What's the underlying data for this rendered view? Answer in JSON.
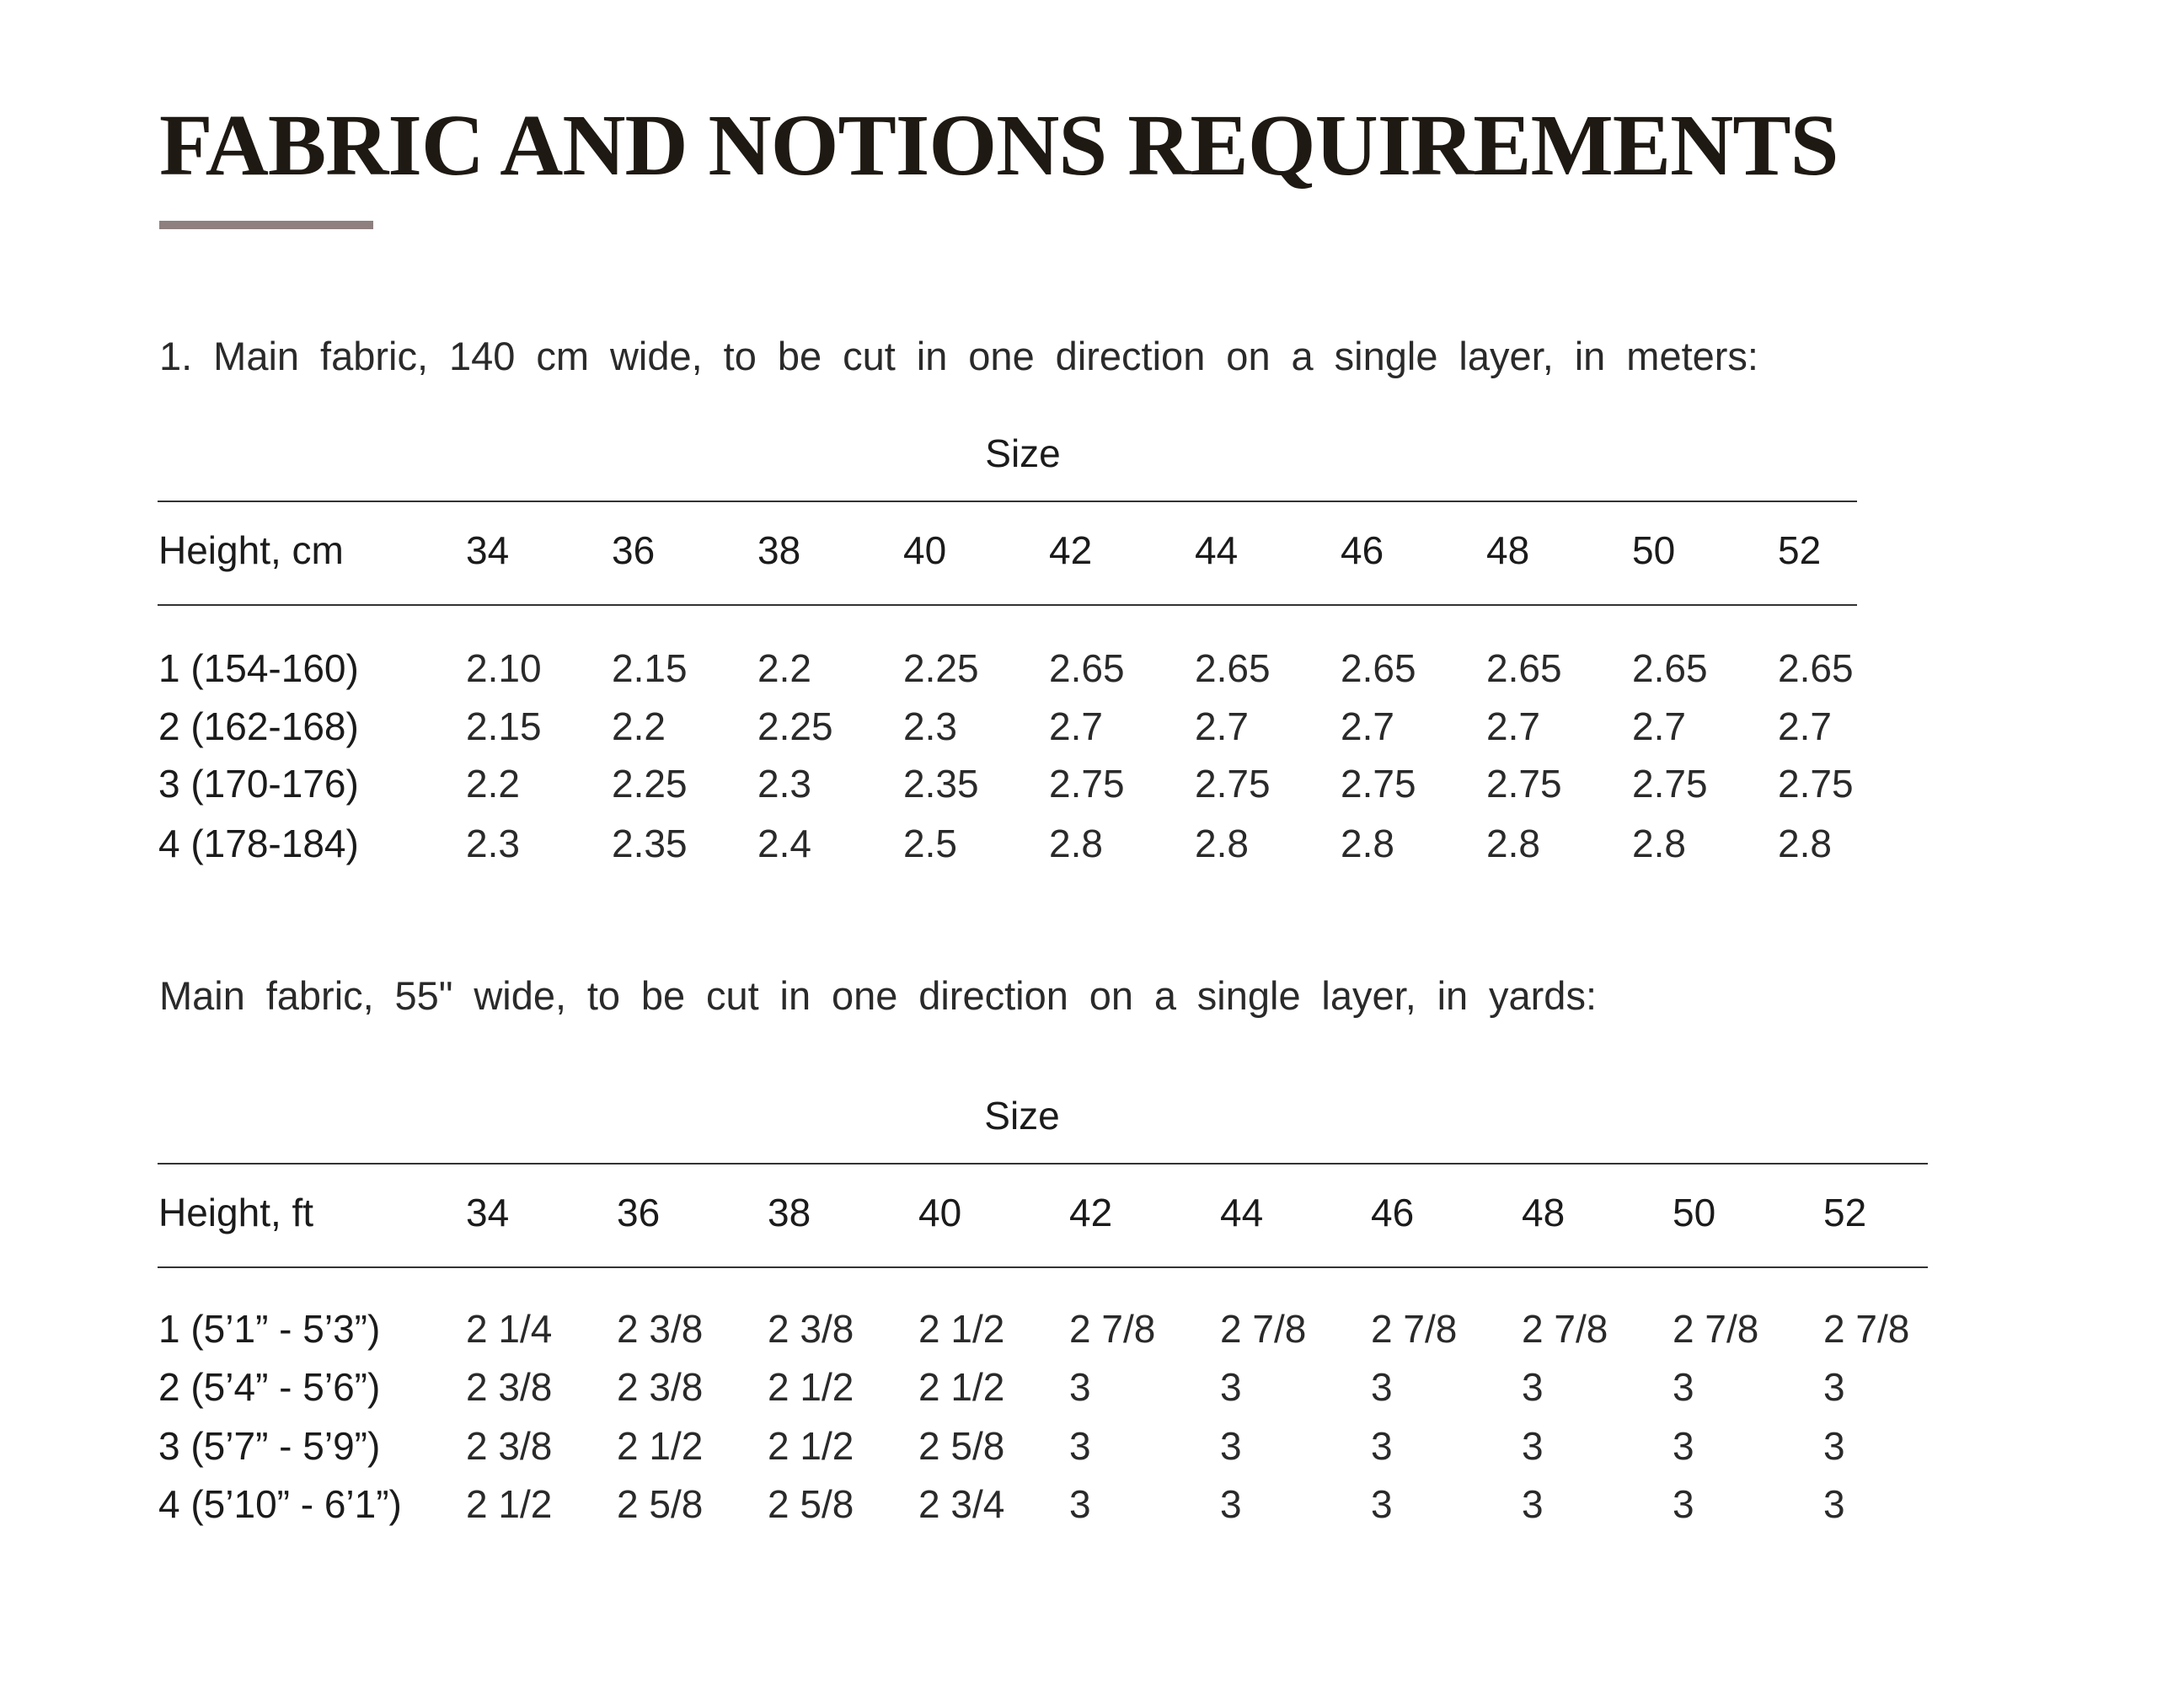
{
  "title": "FABRIC AND NOTIONS REQUIREMENTS",
  "accent_color": "#8f7f7f",
  "tables": [
    {
      "caption": "1. Main fabric, 140 cm wide, to be cut in one direction on a single layer, in meters:",
      "size_label": "Size",
      "row_header": "Height, cm",
      "sizes": [
        "34",
        "36",
        "38",
        "40",
        "42",
        "44",
        "46",
        "48",
        "50",
        "52"
      ],
      "rows": [
        {
          "label": "1 (154-160)",
          "values": [
            "2.10",
            "2.15",
            "2.2",
            "2.25",
            "2.65",
            "2.65",
            "2.65",
            "2.65",
            "2.65",
            "2.65"
          ]
        },
        {
          "label": "2 (162-168)",
          "values": [
            "2.15",
            "2.2",
            "2.25",
            "2.3",
            "2.7",
            "2.7",
            "2.7",
            "2.7",
            "2.7",
            "2.7"
          ]
        },
        {
          "label": "3 (170-176)",
          "values": [
            "2.2",
            "2.25",
            "2.3",
            "2.35",
            "2.75",
            "2.75",
            "2.75",
            "2.75",
            "2.75",
            "2.75"
          ]
        },
        {
          "label": "4 (178-184)",
          "values": [
            "2.3",
            "2.35",
            "2.4",
            "2.5",
            "2.8",
            "2.8",
            "2.8",
            "2.8",
            "2.8",
            "2.8"
          ]
        }
      ]
    },
    {
      "caption": "Main fabric, 55\" wide, to be cut in one direction on a single layer, in yards:",
      "size_label": "Size",
      "row_header": "Height, ft",
      "sizes": [
        "34",
        "36",
        "38",
        "40",
        "42",
        "44",
        "46",
        "48",
        "50",
        "52"
      ],
      "rows": [
        {
          "label": "1 (5’1” - 5’3”)",
          "values": [
            "2 1/4",
            "2 3/8",
            "2 3/8",
            "2 1/2",
            "2 7/8",
            "2 7/8",
            "2 7/8",
            "2 7/8",
            "2 7/8",
            "2 7/8"
          ]
        },
        {
          "label": "2 (5’4” - 5’6”)",
          "values": [
            "2 3/8",
            "2 3/8",
            "2 1/2",
            "2 1/2",
            "3",
            "3",
            "3",
            "3",
            "3",
            "3"
          ]
        },
        {
          "label": "3 (5’7” - 5’9”)",
          "values": [
            "2 3/8",
            "2 1/2",
            "2 1/2",
            "2 5/8",
            "3",
            "3",
            "3",
            "3",
            "3",
            "3"
          ]
        },
        {
          "label": "4 (5’10” - 6’1”)",
          "values": [
            "2 1/2",
            "2 5/8",
            "2 5/8",
            "2 3/4",
            "3",
            "3",
            "3",
            "3",
            "3",
            "3"
          ]
        }
      ]
    }
  ]
}
